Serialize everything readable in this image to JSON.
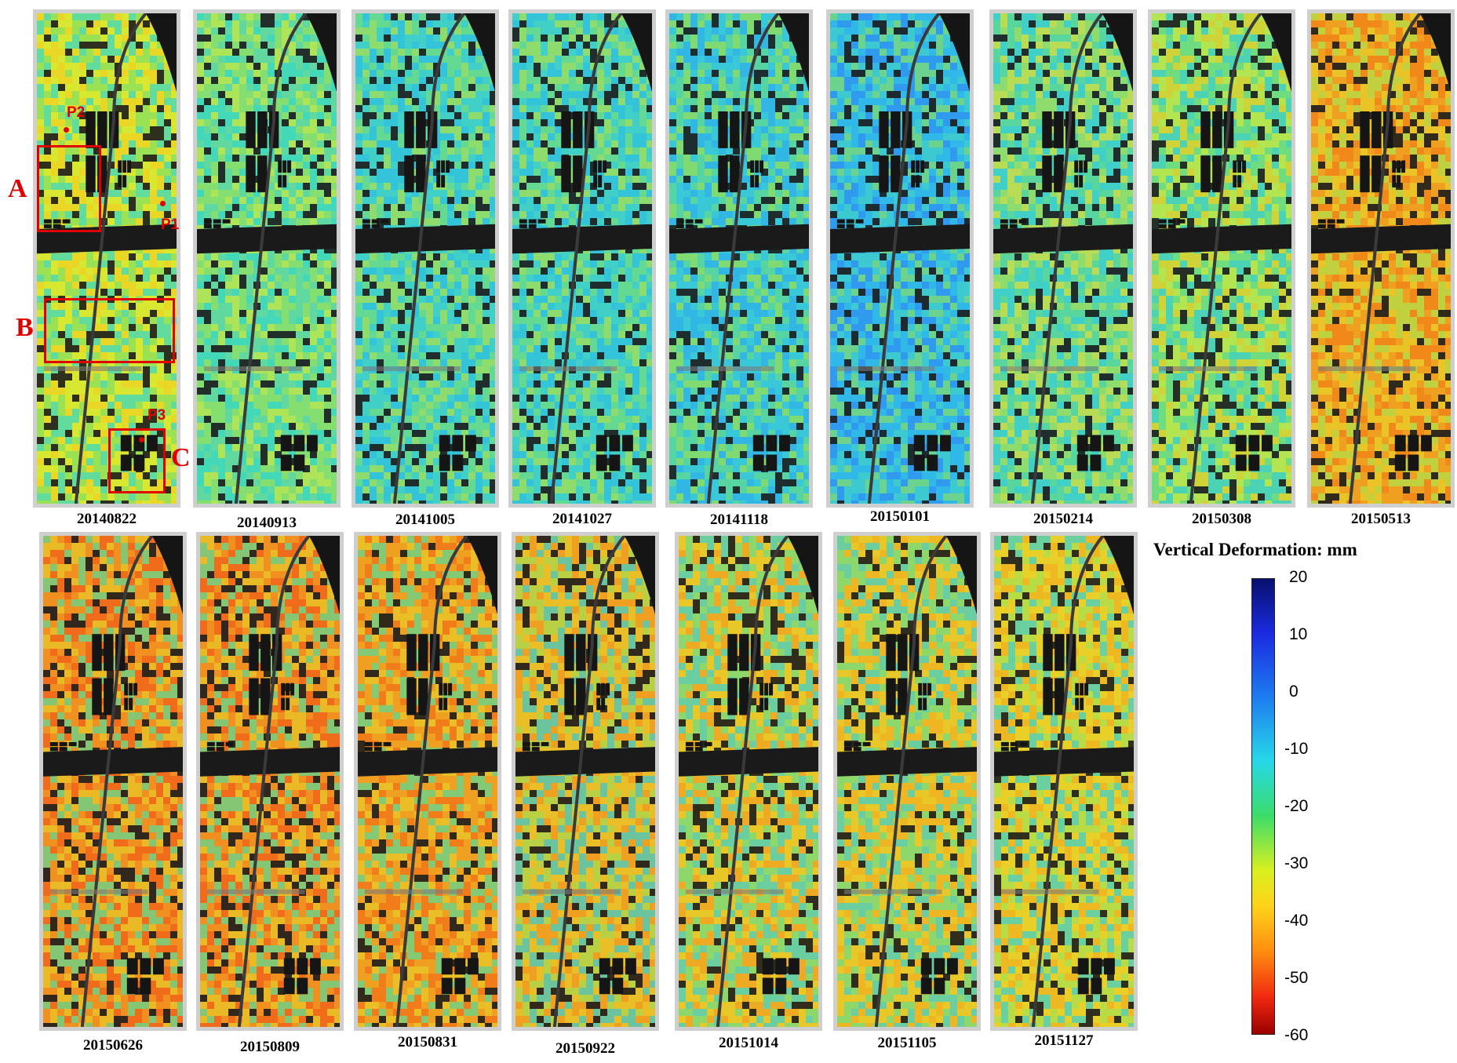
{
  "panels_row1": [
    {
      "date": "20140822"
    },
    {
      "date": "20140913"
    },
    {
      "date": "20141005"
    },
    {
      "date": "20141027"
    },
    {
      "date": "20141118"
    },
    {
      "date": "20150101"
    },
    {
      "date": "20150214"
    },
    {
      "date": "20150308"
    },
    {
      "date": "20150513"
    }
  ],
  "panels_row2": [
    {
      "date": "20150626"
    },
    {
      "date": "20150809"
    },
    {
      "date": "20150831"
    },
    {
      "date": "20150922"
    },
    {
      "date": "20151014"
    },
    {
      "date": "20151105"
    },
    {
      "date": "20151127"
    }
  ],
  "annotations": {
    "regions": [
      "A",
      "B",
      "C"
    ],
    "points": [
      "P1",
      "P2",
      "P3"
    ]
  },
  "colorbar": {
    "title": "Vertical Deformation: mm",
    "ticks": [
      "20",
      "10",
      "0",
      "-10",
      "-20",
      "-30",
      "-40",
      "-50",
      "-60"
    ],
    "range": [
      -60,
      20
    ],
    "colors": [
      "#08106e",
      "#1a2be0",
      "#1e7cf0",
      "#26d8e8",
      "#3bdc6a",
      "#d8f020",
      "#ffd21a",
      "#ff8c10",
      "#f02810",
      "#9a0000"
    ]
  },
  "panel_palettes": {
    "row1": [
      [
        "#d8e830",
        "#86e060",
        "#3ad8c0",
        "#f0d020"
      ],
      [
        "#60d8a0",
        "#3ad8c0",
        "#90e060",
        "#c8e840"
      ],
      [
        "#40d0c8",
        "#30c0e0",
        "#70dc80",
        "#a8e050"
      ],
      [
        "#40d0c8",
        "#30c0e0",
        "#70dc80",
        "#a8e050"
      ],
      [
        "#3ac8d8",
        "#30b0e8",
        "#60d890",
        "#98e050"
      ],
      [
        "#30b8e8",
        "#3090f0",
        "#40d0c8",
        "#80dc70"
      ],
      [
        "#40d0c8",
        "#60d890",
        "#a8e050",
        "#e0e030"
      ],
      [
        "#70dc80",
        "#c8e840",
        "#f0d020",
        "#40d0c8"
      ],
      [
        "#f0a020",
        "#f08018",
        "#e8d028",
        "#b0e048"
      ]
    ],
    "row2": [
      [
        "#f09020",
        "#f06018",
        "#e8c828",
        "#60d890"
      ],
      [
        "#f09020",
        "#f06018",
        "#e8c828",
        "#60d890"
      ],
      [
        "#f0a020",
        "#e8c828",
        "#f07018",
        "#60d890"
      ],
      [
        "#f0a020",
        "#e8c828",
        "#a8e050",
        "#40d0c8"
      ],
      [
        "#e8c828",
        "#f0a020",
        "#70dc80",
        "#40d0c8"
      ],
      [
        "#e8c828",
        "#f0b020",
        "#70dc80",
        "#40d0c8"
      ],
      [
        "#e8d028",
        "#a8e050",
        "#40d0c8",
        "#f0b020"
      ]
    ]
  }
}
